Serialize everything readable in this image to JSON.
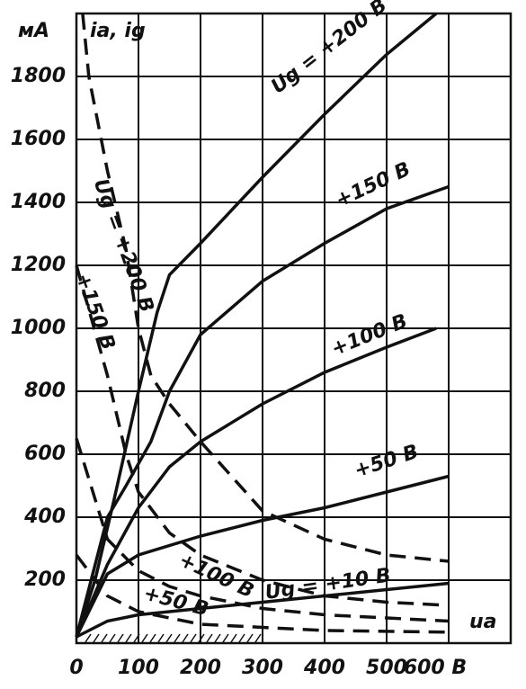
{
  "chart_data": {
    "type": "line",
    "y_unit": "мА",
    "y_label": "ia, ig",
    "x_label": "ua",
    "xlim": [
      0,
      700
    ],
    "ylim": [
      0,
      2000
    ],
    "xticks": [
      0,
      100,
      200,
      300,
      400,
      500,
      {
        "value": 600,
        "label": "600 В"
      }
    ],
    "yticks": [
      200,
      400,
      600,
      800,
      1000,
      1200,
      1400,
      1600,
      1800
    ],
    "grid": true,
    "series": [
      {
        "name": "Ug = +200 В",
        "color": "#111111",
        "style": "solid",
        "x": [
          0,
          30,
          60,
          100,
          130,
          150,
          200,
          300,
          400,
          500,
          580
        ],
        "values": [
          20,
          200,
          450,
          800,
          1050,
          1170,
          1270,
          1480,
          1680,
          1870,
          2000
        ]
      },
      {
        "name": "+150 В",
        "color": "#111111",
        "style": "solid",
        "x": [
          0,
          50,
          80,
          120,
          150,
          200,
          300,
          400,
          500,
          600
        ],
        "values": [
          20,
          400,
          500,
          640,
          800,
          980,
          1150,
          1270,
          1380,
          1450
        ]
      },
      {
        "name": "+100 В",
        "color": "#111111",
        "style": "solid",
        "x": [
          0,
          50,
          100,
          150,
          200,
          300,
          400,
          500,
          580
        ],
        "values": [
          20,
          250,
          430,
          560,
          640,
          760,
          860,
          940,
          1000
        ]
      },
      {
        "name": "+50 В",
        "color": "#111111",
        "style": "solid",
        "x": [
          0,
          50,
          100,
          200,
          300,
          400,
          500,
          600
        ],
        "values": [
          20,
          220,
          280,
          340,
          390,
          430,
          480,
          530
        ]
      },
      {
        "name": "Ug = +10 В",
        "color": "#111111",
        "style": "solid",
        "x": [
          0,
          50,
          100,
          200,
          300,
          400,
          500,
          600
        ],
        "values": [
          20,
          70,
          90,
          110,
          130,
          150,
          170,
          190
        ]
      },
      {
        "name": "Ug = +200 В",
        "color": "#111111",
        "style": "dashed",
        "x": [
          10,
          20,
          50,
          80,
          100,
          120,
          150,
          200,
          300,
          400,
          500,
          600
        ],
        "values": [
          2000,
          1800,
          1500,
          1250,
          1000,
          850,
          760,
          640,
          420,
          330,
          280,
          260
        ]
      },
      {
        "name": "+150 В",
        "color": "#111111",
        "style": "dashed",
        "x": [
          0,
          50,
          80,
          100,
          150,
          200,
          300,
          400,
          500,
          600
        ],
        "values": [
          1200,
          850,
          600,
          480,
          350,
          280,
          200,
          150,
          130,
          120
        ]
      },
      {
        "name": "+100 В",
        "color": "#111111",
        "style": "dashed",
        "x": [
          0,
          50,
          100,
          150,
          200,
          300,
          400,
          500,
          600
        ],
        "values": [
          650,
          330,
          230,
          180,
          150,
          110,
          90,
          80,
          70
        ]
      },
      {
        "name": "+50 В",
        "color": "#111111",
        "style": "dashed",
        "x": [
          0,
          50,
          100,
          200,
          300,
          400,
          600
        ],
        "values": [
          280,
          150,
          100,
          60,
          50,
          40,
          35
        ]
      }
    ]
  }
}
